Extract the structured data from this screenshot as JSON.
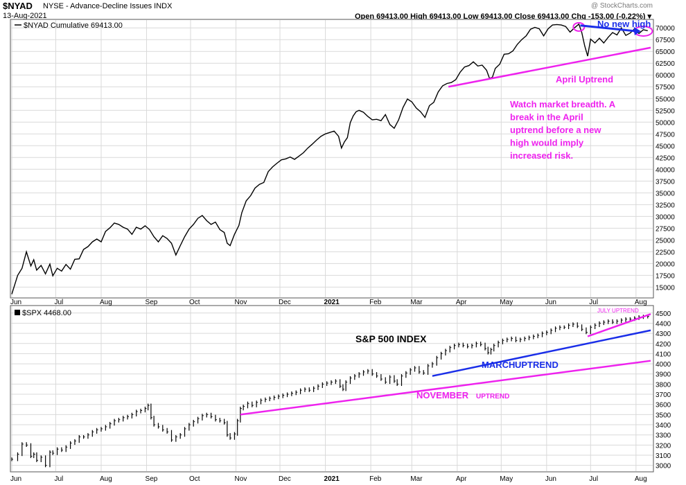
{
  "header": {
    "symbol": "$NYAD",
    "description": "NYSE - Advance-Decline Issues INDX",
    "date": "13-Aug-2021",
    "ohlc": "Open 69413.00  High 69413.00  Low 69413.00  Close 69413.00  Chg -153.00 (-0.22%) ▾",
    "watermark": "@ StockCharts.com"
  },
  "colors": {
    "magenta": "#ee22ee",
    "blue": "#1a2ee8",
    "price": "#000000",
    "grid": "#d9d9d9"
  },
  "x_axis": {
    "labels": [
      {
        "label": "Jun",
        "d": 0
      },
      {
        "label": "Jul",
        "d": 30
      },
      {
        "label": "Aug",
        "d": 61
      },
      {
        "label": "Sep",
        "d": 92
      },
      {
        "label": "Oct",
        "d": 122
      },
      {
        "label": "Nov",
        "d": 153
      },
      {
        "label": "Dec",
        "d": 183
      },
      {
        "label": "2021",
        "d": 214,
        "bold": true
      },
      {
        "label": "Feb",
        "d": 245
      },
      {
        "label": "Mar",
        "d": 273
      },
      {
        "label": "Apr",
        "d": 304
      },
      {
        "label": "May",
        "d": 334
      },
      {
        "label": "Jun",
        "d": 365
      },
      {
        "label": "Jul",
        "d": 395
      },
      {
        "label": "Aug",
        "d": 426
      }
    ]
  },
  "chart_data": [
    {
      "type": "line",
      "legend": "$NYAD Cumulative 69413.00",
      "ylim": [
        13000,
        71500
      ],
      "y_ticks": [
        15000,
        17500,
        20000,
        22500,
        25000,
        27500,
        30000,
        32500,
        35000,
        37500,
        40000,
        42500,
        45000,
        47500,
        50000,
        52500,
        55000,
        57500,
        60000,
        62500,
        65000,
        67500,
        70000
      ],
      "series_points": [
        [
          0,
          13500
        ],
        [
          4,
          17500
        ],
        [
          7,
          19000
        ],
        [
          10,
          22500
        ],
        [
          13,
          19500
        ],
        [
          15,
          20800
        ],
        [
          17,
          18600
        ],
        [
          20,
          19600
        ],
        [
          23,
          17800
        ],
        [
          26,
          19900
        ],
        [
          28,
          17400
        ],
        [
          31,
          19000
        ],
        [
          34,
          18400
        ],
        [
          37,
          19800
        ],
        [
          40,
          18800
        ],
        [
          43,
          20900
        ],
        [
          46,
          21000
        ],
        [
          49,
          23000
        ],
        [
          52,
          23600
        ],
        [
          55,
          24600
        ],
        [
          58,
          25200
        ],
        [
          61,
          24600
        ],
        [
          64,
          26800
        ],
        [
          67,
          27600
        ],
        [
          70,
          28600
        ],
        [
          73,
          28300
        ],
        [
          76,
          27700
        ],
        [
          79,
          27300
        ],
        [
          82,
          26200
        ],
        [
          85,
          27700
        ],
        [
          88,
          27300
        ],
        [
          91,
          28000
        ],
        [
          94,
          27200
        ],
        [
          97,
          25700
        ],
        [
          100,
          24600
        ],
        [
          103,
          25900
        ],
        [
          106,
          25300
        ],
        [
          109,
          24300
        ],
        [
          112,
          21800
        ],
        [
          115,
          23800
        ],
        [
          118,
          25700
        ],
        [
          121,
          27300
        ],
        [
          124,
          28300
        ],
        [
          127,
          29600
        ],
        [
          130,
          30200
        ],
        [
          133,
          29100
        ],
        [
          136,
          28300
        ],
        [
          139,
          28800
        ],
        [
          142,
          27200
        ],
        [
          145,
          26600
        ],
        [
          147,
          24300
        ],
        [
          149,
          23800
        ],
        [
          152,
          26200
        ],
        [
          155,
          28100
        ],
        [
          157,
          30800
        ],
        [
          160,
          33300
        ],
        [
          163,
          34400
        ],
        [
          166,
          36000
        ],
        [
          169,
          36800
        ],
        [
          172,
          37200
        ],
        [
          175,
          39500
        ],
        [
          178,
          40500
        ],
        [
          181,
          41300
        ],
        [
          184,
          42000
        ],
        [
          187,
          42200
        ],
        [
          190,
          42600
        ],
        [
          193,
          42100
        ],
        [
          196,
          42800
        ],
        [
          199,
          43500
        ],
        [
          202,
          44500
        ],
        [
          205,
          45300
        ],
        [
          208,
          46200
        ],
        [
          211,
          47000
        ],
        [
          214,
          47500
        ],
        [
          217,
          47800
        ],
        [
          220,
          48100
        ],
        [
          223,
          47000
        ],
        [
          225,
          44500
        ],
        [
          227,
          45800
        ],
        [
          229,
          46700
        ],
        [
          231,
          49900
        ],
        [
          233,
          51300
        ],
        [
          235,
          52200
        ],
        [
          237,
          52500
        ],
        [
          240,
          52100
        ],
        [
          243,
          51200
        ],
        [
          246,
          50500
        ],
        [
          249,
          50600
        ],
        [
          252,
          50300
        ],
        [
          255,
          51600
        ],
        [
          258,
          49500
        ],
        [
          261,
          48700
        ],
        [
          264,
          50500
        ],
        [
          267,
          53100
        ],
        [
          270,
          54900
        ],
        [
          273,
          54300
        ],
        [
          276,
          53000
        ],
        [
          279,
          52200
        ],
        [
          282,
          51000
        ],
        [
          285,
          53500
        ],
        [
          288,
          54200
        ],
        [
          291,
          56400
        ],
        [
          294,
          57700
        ],
        [
          297,
          58200
        ],
        [
          300,
          58400
        ],
        [
          303,
          59000
        ],
        [
          306,
          60600
        ],
        [
          309,
          61700
        ],
        [
          312,
          62000
        ],
        [
          315,
          62800
        ],
        [
          318,
          61900
        ],
        [
          321,
          62100
        ],
        [
          324,
          61000
        ],
        [
          326,
          59300
        ],
        [
          328,
          59500
        ],
        [
          330,
          61400
        ],
        [
          333,
          62300
        ],
        [
          336,
          64400
        ],
        [
          339,
          64500
        ],
        [
          342,
          65100
        ],
        [
          345,
          66500
        ],
        [
          348,
          67500
        ],
        [
          351,
          68300
        ],
        [
          354,
          69700
        ],
        [
          357,
          70100
        ],
        [
          360,
          69800
        ],
        [
          363,
          68300
        ],
        [
          366,
          69800
        ],
        [
          369,
          70600
        ],
        [
          372,
          70700
        ],
        [
          375,
          70600
        ],
        [
          378,
          70300
        ],
        [
          381,
          69100
        ],
        [
          384,
          70000
        ],
        [
          387,
          70800
        ],
        [
          389,
          69000
        ],
        [
          391,
          66200
        ],
        [
          393,
          64000
        ],
        [
          395,
          67600
        ],
        [
          398,
          66800
        ],
        [
          401,
          67800
        ],
        [
          404,
          66800
        ],
        [
          407,
          68000
        ],
        [
          410,
          69000
        ],
        [
          413,
          68500
        ],
        [
          416,
          70000
        ],
        [
          419,
          68400
        ],
        [
          422,
          68900
        ],
        [
          425,
          69800
        ],
        [
          428,
          68800
        ],
        [
          431,
          69600
        ],
        [
          434,
          69400
        ]
      ],
      "annotations": [
        "April Uptrend",
        "No new high",
        "Watch market breadth.  A",
        "break in the April",
        "uptrend before a new",
        "high would imply",
        "increased risk."
      ]
    },
    {
      "type": "bar",
      "legend": "$SPX 4468.00",
      "title": "S&P 500 INDEX",
      "ylim": [
        2950,
        4560
      ],
      "y_ticks": [
        3000,
        3100,
        3200,
        3300,
        3400,
        3500,
        3600,
        3700,
        3800,
        3900,
        4000,
        4100,
        4200,
        4300,
        4400,
        4500
      ],
      "series_points": [
        [
          0,
          3060
        ],
        [
          4,
          3110
        ],
        [
          7,
          3210
        ],
        [
          10,
          3200
        ],
        [
          13,
          3090
        ],
        [
          15,
          3110
        ],
        [
          17,
          3050
        ],
        [
          20,
          3080
        ],
        [
          23,
          3000
        ],
        [
          26,
          3130
        ],
        [
          28,
          3120
        ],
        [
          31,
          3160
        ],
        [
          34,
          3150
        ],
        [
          37,
          3180
        ],
        [
          40,
          3220
        ],
        [
          43,
          3240
        ],
        [
          46,
          3280
        ],
        [
          49,
          3280
        ],
        [
          52,
          3300
        ],
        [
          55,
          3330
        ],
        [
          58,
          3350
        ],
        [
          61,
          3360
        ],
        [
          64,
          3380
        ],
        [
          67,
          3410
        ],
        [
          70,
          3440
        ],
        [
          73,
          3450
        ],
        [
          76,
          3470
        ],
        [
          79,
          3480
        ],
        [
          82,
          3500
        ],
        [
          85,
          3530
        ],
        [
          88,
          3540
        ],
        [
          91,
          3560
        ],
        [
          93,
          3590
        ],
        [
          95,
          3470
        ],
        [
          97,
          3400
        ],
        [
          100,
          3380
        ],
        [
          103,
          3350
        ],
        [
          106,
          3330
        ],
        [
          109,
          3250
        ],
        [
          112,
          3280
        ],
        [
          115,
          3300
        ],
        [
          118,
          3360
        ],
        [
          121,
          3400
        ],
        [
          124,
          3430
        ],
        [
          127,
          3460
        ],
        [
          130,
          3490
        ],
        [
          133,
          3500
        ],
        [
          136,
          3480
        ],
        [
          139,
          3450
        ],
        [
          142,
          3440
        ],
        [
          145,
          3420
        ],
        [
          147,
          3300
        ],
        [
          149,
          3270
        ],
        [
          152,
          3310
        ],
        [
          154,
          3440
        ],
        [
          156,
          3560
        ],
        [
          158,
          3580
        ],
        [
          161,
          3610
        ],
        [
          164,
          3590
        ],
        [
          167,
          3620
        ],
        [
          170,
          3640
        ],
        [
          173,
          3650
        ],
        [
          176,
          3660
        ],
        [
          179,
          3670
        ],
        [
          182,
          3680
        ],
        [
          185,
          3690
        ],
        [
          188,
          3700
        ],
        [
          191,
          3710
        ],
        [
          194,
          3720
        ],
        [
          197,
          3740
        ],
        [
          200,
          3750
        ],
        [
          203,
          3740
        ],
        [
          206,
          3760
        ],
        [
          209,
          3780
        ],
        [
          212,
          3800
        ],
        [
          215,
          3810
        ],
        [
          218,
          3820
        ],
        [
          221,
          3830
        ],
        [
          224,
          3780
        ],
        [
          226,
          3750
        ],
        [
          228,
          3820
        ],
        [
          231,
          3860
        ],
        [
          234,
          3880
        ],
        [
          237,
          3900
        ],
        [
          240,
          3920
        ],
        [
          243,
          3930
        ],
        [
          246,
          3900
        ],
        [
          249,
          3880
        ],
        [
          252,
          3850
        ],
        [
          255,
          3820
        ],
        [
          258,
          3870
        ],
        [
          261,
          3830
        ],
        [
          263,
          3800
        ],
        [
          266,
          3880
        ],
        [
          269,
          3910
        ],
        [
          272,
          3940
        ],
        [
          275,
          3960
        ],
        [
          278,
          3920
        ],
        [
          281,
          3910
        ],
        [
          284,
          3980
        ],
        [
          287,
          4000
        ],
        [
          290,
          4060
        ],
        [
          293,
          4100
        ],
        [
          296,
          4130
        ],
        [
          299,
          4160
        ],
        [
          302,
          4180
        ],
        [
          305,
          4190
        ],
        [
          308,
          4180
        ],
        [
          311,
          4170
        ],
        [
          314,
          4180
        ],
        [
          317,
          4200
        ],
        [
          320,
          4190
        ],
        [
          323,
          4150
        ],
        [
          325,
          4110
        ],
        [
          327,
          4140
        ],
        [
          329,
          4180
        ],
        [
          332,
          4210
        ],
        [
          335,
          4230
        ],
        [
          338,
          4240
        ],
        [
          341,
          4250
        ],
        [
          344,
          4230
        ],
        [
          347,
          4240
        ],
        [
          350,
          4250
        ],
        [
          353,
          4260
        ],
        [
          356,
          4270
        ],
        [
          359,
          4280
        ],
        [
          362,
          4300
        ],
        [
          365,
          4310
        ],
        [
          368,
          4330
        ],
        [
          371,
          4350
        ],
        [
          374,
          4360
        ],
        [
          377,
          4360
        ],
        [
          380,
          4380
        ],
        [
          383,
          4390
        ],
        [
          386,
          4370
        ],
        [
          389,
          4340
        ],
        [
          392,
          4310
        ],
        [
          395,
          4360
        ],
        [
          398,
          4380
        ],
        [
          401,
          4400
        ],
        [
          404,
          4410
        ],
        [
          407,
          4420
        ],
        [
          410,
          4410
        ],
        [
          413,
          4420
        ],
        [
          416,
          4430
        ],
        [
          419,
          4440
        ],
        [
          422,
          4440
        ],
        [
          425,
          4450
        ],
        [
          428,
          4460
        ],
        [
          431,
          4465
        ],
        [
          434,
          4468
        ]
      ],
      "annotations": [
        "MARCH",
        "UPTREND",
        "NOVEMBER",
        "UPTREND",
        "JULY UPTREND"
      ]
    }
  ]
}
